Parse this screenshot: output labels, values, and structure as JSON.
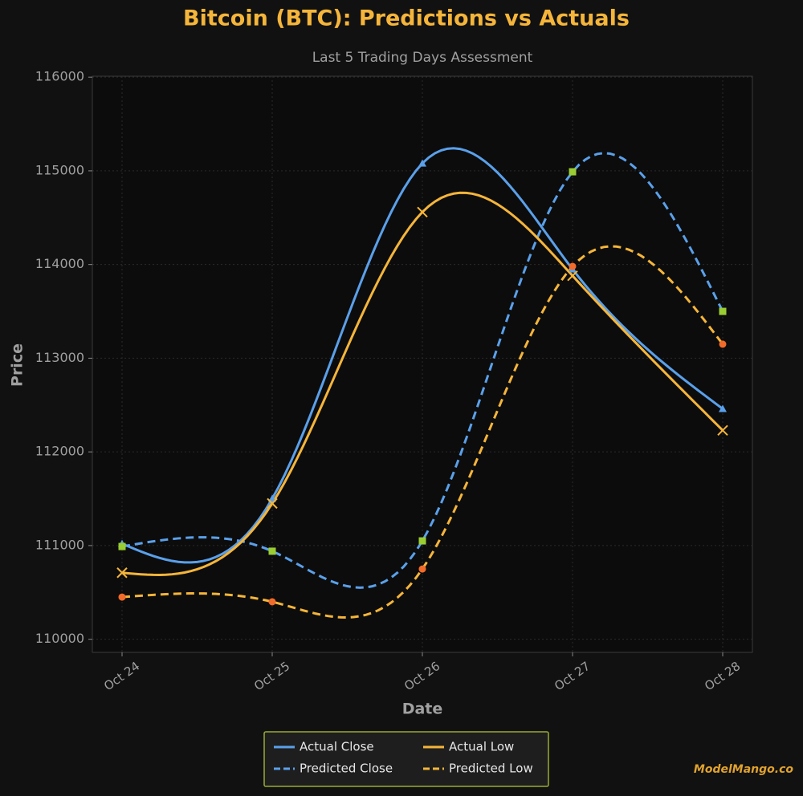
{
  "chart_data": {
    "type": "line",
    "title": "Bitcoin (BTC): Predictions vs Actuals",
    "subtitle": "Last 5 Trading Days Assessment",
    "x_label": "Date",
    "y_label": "Price",
    "categories": [
      "Oct 24",
      "Oct 25",
      "Oct 26",
      "Oct 27",
      "Oct 28"
    ],
    "series": [
      {
        "name": "Actual Close",
        "color": "#5aa0ea",
        "marker_color": "#5aa0ea",
        "marker": "triangle",
        "dashed": false,
        "values": [
          111020,
          111500,
          115080,
          113950,
          112460
        ]
      },
      {
        "name": "Predicted Close",
        "color": "#5aa0ea",
        "marker_color": "#9acd32",
        "marker": "square",
        "dashed": true,
        "values": [
          110990,
          110940,
          111050,
          114990,
          113500
        ]
      },
      {
        "name": "Actual Low",
        "color": "#f5b53a",
        "marker_color": "#f5b53a",
        "marker": "x",
        "dashed": false,
        "values": [
          110710,
          111450,
          114560,
          113880,
          112230
        ]
      },
      {
        "name": "Predicted Low",
        "color": "#f5b53a",
        "marker_color": "#f26b2a",
        "marker": "circle",
        "dashed": true,
        "values": [
          110450,
          110400,
          110750,
          113980,
          113150
        ]
      }
    ],
    "ylim": [
      109860,
      116010
    ],
    "yticks": [
      110000,
      111000,
      112000,
      113000,
      114000,
      115000,
      116000
    ],
    "grid": true,
    "legend": "bottom",
    "watermark": "ModelMango.co"
  }
}
